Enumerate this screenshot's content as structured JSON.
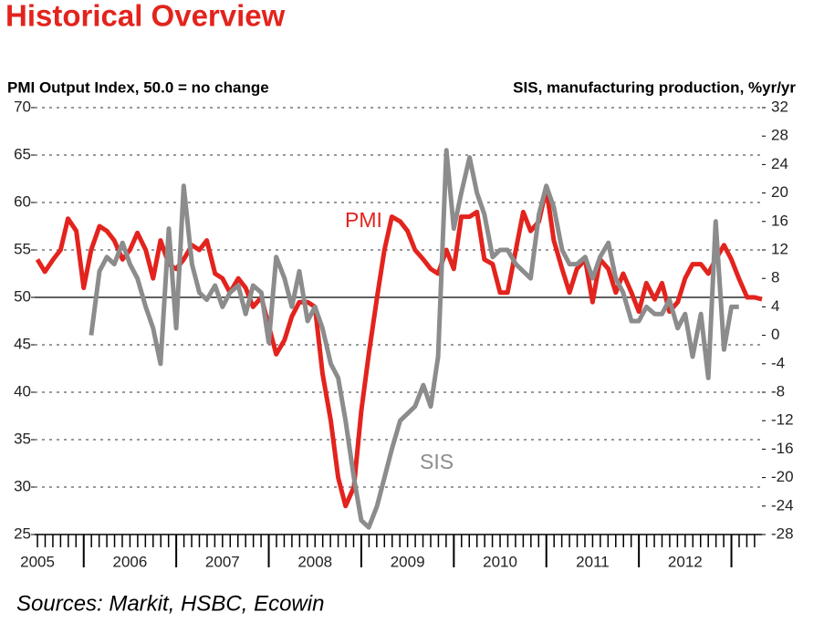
{
  "chart_data": {
    "type": "line",
    "title": "Historical Overview",
    "y_axis_label": "PMI Output Index, 50.0 = no change",
    "y2_axis_label": "SIS, manufacturing production, %yr/yr",
    "source": "Sources: Markit, HSBC, Ecowin",
    "annotations": [
      {
        "text": "PMI",
        "series": 0
      },
      {
        "text": "SIS",
        "series": 1
      }
    ],
    "reference_line": 50,
    "xlim": [
      2005.47,
      2013.33
    ],
    "xticks": [
      {
        "value": 2005.5,
        "label": "2005"
      },
      {
        "value": 2006.5,
        "label": "2006"
      },
      {
        "value": 2007.5,
        "label": "2007"
      },
      {
        "value": 2008.5,
        "label": "2008"
      },
      {
        "value": 2009.5,
        "label": "2009"
      },
      {
        "value": 2010.5,
        "label": "2010"
      },
      {
        "value": 2011.5,
        "label": "2011"
      },
      {
        "value": 2012.5,
        "label": "2012"
      }
    ],
    "ylim": [
      25,
      70
    ],
    "yticks": [
      25,
      30,
      35,
      40,
      45,
      50,
      55,
      60,
      65,
      70
    ],
    "y2lim": [
      -28,
      32
    ],
    "y2ticks": [
      -28,
      -24,
      -20,
      -16,
      -12,
      -8,
      -4,
      0,
      4,
      8,
      12,
      16,
      20,
      24,
      28,
      32
    ],
    "grid": true,
    "x": [
      2005.5,
      2005.58,
      2005.67,
      2005.75,
      2005.83,
      2005.92,
      2006,
      2006.08,
      2006.17,
      2006.25,
      2006.33,
      2006.42,
      2006.5,
      2006.58,
      2006.67,
      2006.75,
      2006.83,
      2006.92,
      2007,
      2007.08,
      2007.17,
      2007.25,
      2007.33,
      2007.42,
      2007.5,
      2007.58,
      2007.67,
      2007.75,
      2007.83,
      2007.92,
      2008,
      2008.08,
      2008.17,
      2008.25,
      2008.33,
      2008.42,
      2008.5,
      2008.58,
      2008.67,
      2008.75,
      2008.83,
      2008.92,
      2009,
      2009.08,
      2009.17,
      2009.25,
      2009.33,
      2009.42,
      2009.5,
      2009.58,
      2009.67,
      2009.75,
      2009.83,
      2009.92,
      2010,
      2010.08,
      2010.17,
      2010.25,
      2010.33,
      2010.42,
      2010.5,
      2010.58,
      2010.67,
      2010.75,
      2010.83,
      2010.92,
      2011,
      2011.08,
      2011.17,
      2011.25,
      2011.33,
      2011.42,
      2011.5,
      2011.58,
      2011.67,
      2011.75,
      2011.83,
      2011.92,
      2012,
      2012.08,
      2012.17,
      2012.25,
      2012.33,
      2012.42,
      2012.5,
      2012.58,
      2012.67,
      2012.75,
      2012.83,
      2012.92,
      2013,
      2013.08,
      2013.17,
      2013.25,
      2013.33
    ],
    "series": [
      {
        "name": "PMI",
        "color": "#e3231d",
        "values": [
          54,
          52.7,
          54,
          55,
          58.3,
          57,
          51,
          55,
          57.5,
          57,
          56,
          54,
          55,
          56.8,
          55,
          52,
          56,
          53.5,
          53,
          54,
          55.5,
          55,
          56,
          52.5,
          52,
          50.5,
          52,
          51,
          49,
          50,
          47,
          44,
          45.5,
          48,
          49.5,
          49.5,
          49,
          42,
          37,
          31,
          28,
          30,
          38,
          44,
          50,
          55,
          58.5,
          58,
          57,
          55,
          54,
          53,
          52.5,
          55,
          53,
          58.5,
          58.5,
          59,
          54,
          53.5,
          50.5,
          50.5,
          55,
          59,
          57,
          58,
          61.5,
          56,
          53,
          50.5,
          53,
          54,
          49.5,
          54,
          53,
          50.5,
          52.5,
          50.5,
          48.5,
          51.5,
          49.8,
          51.5,
          48.5,
          49.5,
          52,
          53.5,
          53.5,
          52.5,
          54,
          55.5,
          54,
          52,
          50,
          50,
          49.8
        ]
      },
      {
        "name": "SIS",
        "color": "#8c8c8c",
        "axis": "y2",
        "values": [
          null,
          null,
          null,
          null,
          null,
          null,
          null,
          0,
          9,
          11,
          10,
          13,
          10,
          8,
          4,
          1,
          -4,
          15,
          1,
          21,
          10,
          6,
          5,
          7,
          4,
          6,
          7,
          3,
          7,
          6,
          -1,
          11,
          8,
          4,
          9,
          2,
          4,
          1,
          -4,
          -6,
          -12,
          -20,
          -26,
          -27,
          -24,
          -20,
          -16,
          -12,
          -11,
          -10,
          -7,
          -10,
          -3,
          26,
          15,
          20,
          25,
          20,
          17,
          11,
          12,
          12,
          10,
          9,
          8,
          17,
          21,
          18,
          12,
          10,
          10,
          11,
          8,
          11,
          13,
          8,
          6,
          2,
          2,
          4,
          3,
          3,
          5,
          1,
          3,
          -3,
          3,
          -6,
          16,
          -2,
          4,
          4,
          null,
          null,
          null
        ]
      }
    ]
  }
}
